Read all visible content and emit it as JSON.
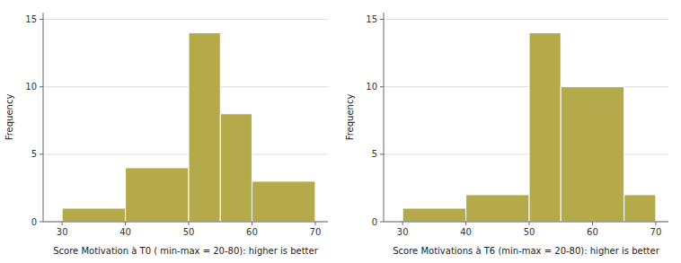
{
  "chart_data": [
    {
      "type": "histogram",
      "bins": [
        30,
        40,
        50,
        55,
        60,
        70
      ],
      "values": [
        1,
        4,
        14,
        8,
        3
      ],
      "xlabel": "Score Motivation à T0 ( min-max = 20-80): higher is better",
      "ylabel": "Frequency",
      "xlim": [
        27,
        72
      ],
      "ylim": [
        0,
        15.5
      ],
      "yticks": [
        0,
        5,
        10,
        15
      ],
      "xticks": [
        30,
        40,
        50,
        60,
        70
      ],
      "color": "#b5aa4a",
      "grid": true
    },
    {
      "type": "histogram",
      "bins": [
        30,
        40,
        50,
        55,
        65,
        70
      ],
      "values": [
        1,
        2,
        14,
        10,
        2
      ],
      "xlabel": "Score Motivations à T6 (min-max = 20-80): higher is better",
      "ylabel": "Frequency",
      "xlim": [
        27,
        72
      ],
      "ylim": [
        0,
        15.5
      ],
      "yticks": [
        0,
        5,
        10,
        15
      ],
      "xticks": [
        30,
        40,
        50,
        60,
        70
      ],
      "color": "#b5aa4a",
      "grid": true
    }
  ]
}
